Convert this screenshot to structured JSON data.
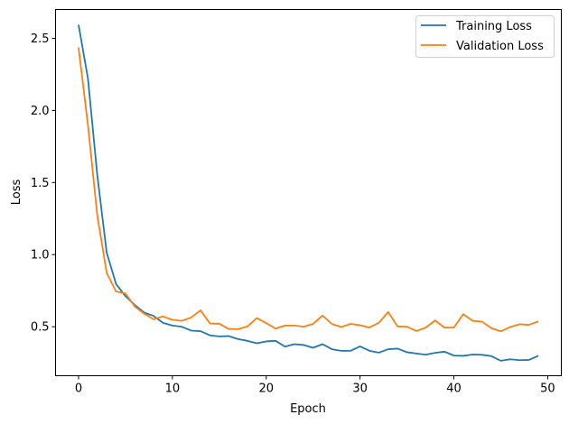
{
  "chart_data": {
    "type": "line",
    "title": "",
    "xlabel": "Epoch",
    "ylabel": "Loss",
    "xlim": [
      -2.45,
      51.45
    ],
    "ylim": [
      0.16,
      2.7
    ],
    "xticks": [
      0,
      10,
      20,
      30,
      40,
      50
    ],
    "xtick_labels": [
      "0",
      "10",
      "20",
      "30",
      "40",
      "50"
    ],
    "yticks": [
      0.5,
      1.0,
      1.5,
      2.0,
      2.5
    ],
    "ytick_labels": [
      "0.5",
      "1.0",
      "1.5",
      "2.0",
      "2.5"
    ],
    "grid": false,
    "legend_position": "upper right",
    "x": [
      0,
      1,
      2,
      3,
      4,
      5,
      6,
      7,
      8,
      9,
      10,
      11,
      12,
      13,
      14,
      15,
      16,
      17,
      18,
      19,
      20,
      21,
      22,
      23,
      24,
      25,
      26,
      27,
      28,
      29,
      30,
      31,
      32,
      33,
      34,
      35,
      36,
      37,
      38,
      39,
      40,
      41,
      42,
      43,
      44,
      45,
      46,
      47,
      48,
      49
    ],
    "series": [
      {
        "name": "Training Loss",
        "color": "#1f77b4",
        "values": [
          2.594,
          2.223,
          1.55,
          1.014,
          0.796,
          0.712,
          0.65,
          0.598,
          0.575,
          0.527,
          0.508,
          0.5,
          0.473,
          0.469,
          0.44,
          0.433,
          0.435,
          0.414,
          0.402,
          0.385,
          0.398,
          0.402,
          0.362,
          0.379,
          0.373,
          0.354,
          0.379,
          0.344,
          0.333,
          0.333,
          0.364,
          0.333,
          0.32,
          0.344,
          0.348,
          0.323,
          0.314,
          0.306,
          0.319,
          0.327,
          0.3,
          0.298,
          0.307,
          0.305,
          0.296,
          0.264,
          0.274,
          0.268,
          0.27,
          0.298
        ]
      },
      {
        "name": "Validation Loss",
        "color": "#ff7f0e",
        "values": [
          2.437,
          1.9,
          1.27,
          0.873,
          0.744,
          0.731,
          0.64,
          0.59,
          0.552,
          0.571,
          0.548,
          0.541,
          0.564,
          0.614,
          0.523,
          0.52,
          0.485,
          0.483,
          0.502,
          0.56,
          0.525,
          0.487,
          0.508,
          0.508,
          0.5,
          0.52,
          0.577,
          0.519,
          0.498,
          0.52,
          0.51,
          0.494,
          0.527,
          0.602,
          0.502,
          0.5,
          0.47,
          0.494,
          0.544,
          0.494,
          0.494,
          0.587,
          0.541,
          0.535,
          0.49,
          0.468,
          0.498,
          0.517,
          0.513,
          0.537
        ]
      }
    ]
  },
  "legend": {
    "items": [
      {
        "label": "Training Loss",
        "color": "#1f77b4"
      },
      {
        "label": "Validation Loss",
        "color": "#ff7f0e"
      }
    ]
  }
}
